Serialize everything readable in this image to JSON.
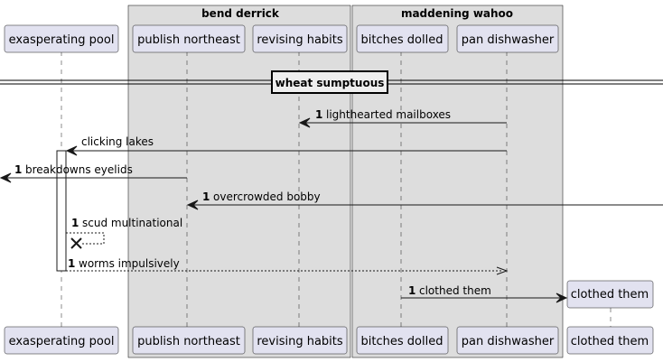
{
  "groups": [
    {
      "title": "bend derrick"
    },
    {
      "title": "maddening wahoo"
    }
  ],
  "participants": {
    "pool": "exasperating pool",
    "northeast": "publish northeast",
    "habits": "revising habits",
    "dolled": "bitches dolled",
    "dishwasher": "pan dishwasher",
    "clothed": "clothed them"
  },
  "divider": "wheat sumptuous",
  "messages": [
    {
      "num": "1",
      "text": "lighthearted mailboxes"
    },
    {
      "num": "",
      "text": "clicking lakes"
    },
    {
      "num": "1",
      "text": "breakdowns eyelids"
    },
    {
      "num": "1",
      "text": "overcrowded bobby"
    },
    {
      "num": "1",
      "text": "scud multinational"
    },
    {
      "num": "1",
      "text": "worms impulsively"
    },
    {
      "num": "1",
      "text": "clothed them"
    }
  ]
}
